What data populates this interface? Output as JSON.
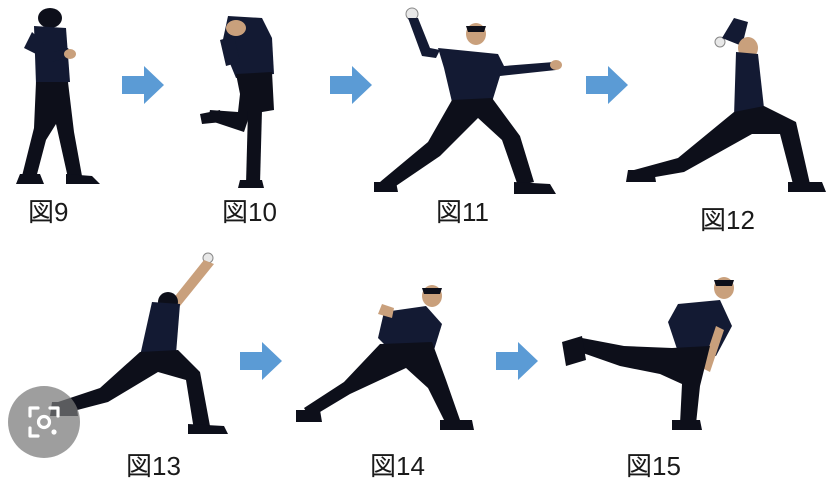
{
  "figures": [
    {
      "id": "9",
      "label": "図9"
    },
    {
      "id": "10",
      "label": "図10"
    },
    {
      "id": "11",
      "label": "図11"
    },
    {
      "id": "12",
      "label": "図12"
    },
    {
      "id": "13",
      "label": "図13"
    },
    {
      "id": "14",
      "label": "図14"
    },
    {
      "id": "15",
      "label": "図15"
    }
  ],
  "colors": {
    "arrow": "#5b9bd5",
    "figure": "#0d0f1a",
    "shirt": "#131a33",
    "skin": "#c9a07c",
    "lens_overlay": "#787878"
  },
  "icons": {
    "arrow": "right-arrow-icon",
    "lens": "visual-search-icon"
  }
}
